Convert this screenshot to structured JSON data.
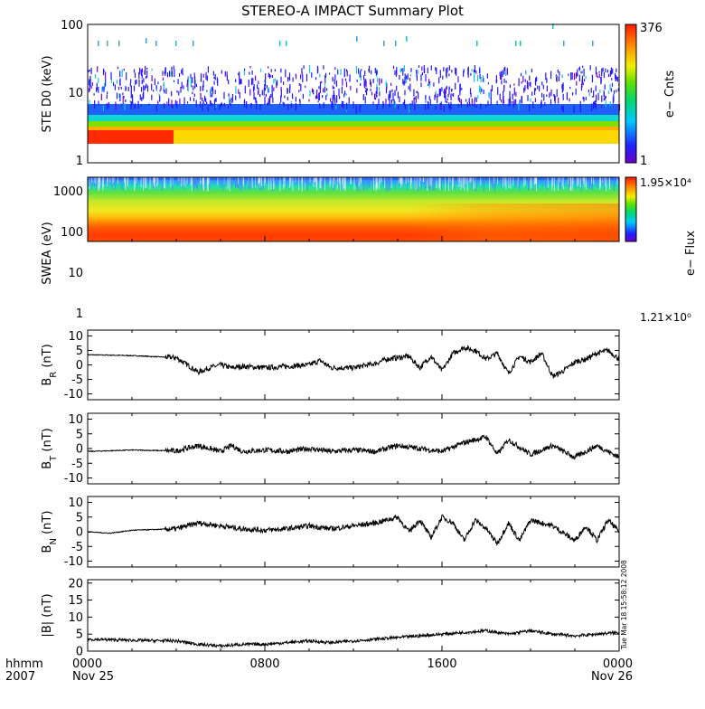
{
  "title": "STEREO-A IMPACT Summary Plot",
  "stamp": "Tue Mar 18 15:58:12 2008",
  "time_axis": {
    "row1_label": "hhmm",
    "row2_label": "2007",
    "ticks": [
      {
        "hour": 0,
        "label": "0000",
        "sublabel": "Nov 25"
      },
      {
        "hour": 8,
        "label": "0800",
        "sublabel": ""
      },
      {
        "hour": 16,
        "label": "1600",
        "sublabel": ""
      },
      {
        "hour": 24,
        "label": "0000",
        "sublabel": "Nov 26"
      }
    ],
    "range_hours": [
      0,
      24
    ]
  },
  "colorbars": [
    {
      "panel": "ste",
      "label": "e− Cnts",
      "max_label": "376",
      "min_label": "1"
    },
    {
      "panel": "swea",
      "label": "e− Flux",
      "max_label": "1.95×10⁴",
      "min_label": "1.21×10⁰"
    }
  ],
  "chart_data": [
    {
      "id": "ste",
      "type": "heatmap",
      "ylabel": "STE D0 (keV)",
      "yscale": "log",
      "ylim": [
        1,
        100
      ],
      "yticks": [
        "100",
        "10",
        "1"
      ],
      "colorbar": {
        "min": 1,
        "max": 376,
        "label": "e− Cnts"
      }
    },
    {
      "id": "swea",
      "type": "heatmap",
      "ylabel": "SWEA (eV)",
      "yscale": "log",
      "ylim": [
        0.9,
        2000
      ],
      "yticks": [
        "1000",
        "100",
        "10",
        "1"
      ],
      "colorbar": {
        "min": 1.21,
        "max": 19500,
        "label": "e− Flux"
      }
    },
    {
      "id": "br",
      "type": "line",
      "ylabel": "B_R (nT)",
      "ylim": [
        -12,
        12
      ],
      "yticks": [
        10,
        5,
        0,
        -5,
        -10
      ],
      "x_hours": [
        0,
        2,
        4,
        4.5,
        5,
        5.5,
        6,
        6.5,
        7,
        8,
        9,
        10,
        10.5,
        11,
        12,
        13,
        13.5,
        14,
        14.5,
        15,
        15.5,
        16,
        16.5,
        17,
        17.5,
        18,
        18.5,
        19,
        19.5,
        20,
        20.5,
        21,
        21.5,
        22,
        22.5,
        23,
        23.5,
        24
      ],
      "values": [
        3.5,
        3.2,
        2.5,
        0,
        -2.5,
        -1,
        0,
        -1,
        -0.5,
        -1,
        -0.5,
        0,
        1.5,
        -1,
        -1,
        0.5,
        2,
        2.5,
        3,
        -1,
        3,
        -2,
        4,
        6,
        5,
        2,
        4,
        -3,
        3,
        1,
        4,
        -4,
        -2,
        1,
        2,
        4,
        5,
        2
      ]
    },
    {
      "id": "bt",
      "type": "line",
      "ylabel": "B_T (nT)",
      "ylim": [
        -12,
        12
      ],
      "yticks": [
        10,
        5,
        0,
        -5,
        -10
      ],
      "x_hours": [
        0,
        2,
        4,
        5,
        6,
        6.5,
        7,
        8,
        9,
        10,
        11,
        12,
        13,
        14,
        15,
        16,
        17,
        18,
        18.5,
        19,
        20,
        21,
        22,
        23,
        24
      ],
      "values": [
        -1,
        -0.5,
        -0.8,
        1,
        -1,
        1,
        -1,
        -0.5,
        -1,
        0,
        -1,
        -0.5,
        -1,
        1,
        0,
        -1,
        2,
        4,
        -2,
        3,
        -2,
        1,
        -3,
        1,
        -3
      ]
    },
    {
      "id": "bn",
      "type": "line",
      "ylabel": "B_N (nT)",
      "ylim": [
        -12,
        12
      ],
      "yticks": [
        10,
        5,
        0,
        -5,
        -10
      ],
      "x_hours": [
        0,
        1,
        2,
        4,
        5,
        6,
        7,
        8,
        9,
        10,
        11,
        12,
        13,
        14,
        14.5,
        15,
        15.5,
        16,
        16.5,
        17,
        17.5,
        18,
        18.5,
        19,
        19.5,
        20,
        21,
        22,
        22.5,
        23,
        23.5,
        24
      ],
      "values": [
        0,
        -0.5,
        0.5,
        1,
        3,
        2,
        1,
        0.5,
        1,
        2,
        1,
        2,
        3,
        5,
        0,
        4,
        -2,
        5,
        3,
        -3,
        4,
        1,
        -4,
        3,
        -3,
        4,
        2,
        -3,
        2,
        -3,
        4,
        0
      ]
    },
    {
      "id": "bmag",
      "type": "line",
      "ylabel": "|B| (nT)",
      "ylim": [
        0,
        21
      ],
      "yticks": [
        20,
        15,
        10,
        5,
        0
      ],
      "x_hours": [
        0,
        2,
        4,
        5,
        6,
        7,
        8,
        9,
        10,
        11,
        12,
        13,
        14,
        15,
        16,
        17,
        18,
        19,
        20,
        21,
        22,
        23,
        24
      ],
      "values": [
        3.5,
        3.2,
        3,
        2,
        1.5,
        2,
        2,
        2.5,
        3,
        2.5,
        3,
        3.5,
        4,
        4.5,
        5,
        5.5,
        6,
        5,
        6,
        5,
        4.5,
        5,
        5.5
      ]
    }
  ]
}
